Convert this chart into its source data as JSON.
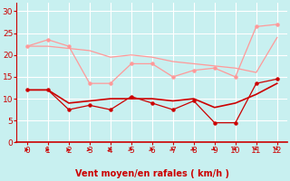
{
  "x": [
    0,
    1,
    2,
    3,
    4,
    5,
    6,
    7,
    8,
    9,
    10,
    11,
    12
  ],
  "line_top_light": [
    22,
    23.5,
    22,
    13.5,
    13.5,
    18,
    18,
    15,
    16.5,
    17,
    15,
    26.5,
    27
  ],
  "line_smooth_light": [
    22,
    22,
    21.5,
    21,
    19.5,
    20,
    19.5,
    18.5,
    18,
    17.5,
    17,
    16,
    24
  ],
  "line_mid_dark": [
    12,
    12,
    7.5,
    8.5,
    7.5,
    10.5,
    9,
    7.5,
    9.5,
    4.5,
    4.5,
    13.5,
    14.5
  ],
  "line_bottom_dark": [
    12,
    12,
    9,
    9.5,
    10,
    10,
    10,
    9.5,
    10,
    8,
    9,
    11,
    13.5
  ],
  "xlabel": "Vent moyen/en rafales ( km/h )",
  "ylim": [
    0,
    32
  ],
  "xlim": [
    -0.5,
    12.5
  ],
  "yticks": [
    0,
    5,
    10,
    15,
    20,
    25,
    30
  ],
  "xticks": [
    0,
    1,
    2,
    3,
    4,
    5,
    6,
    7,
    8,
    9,
    10,
    11,
    12
  ],
  "bg_color": "#c8f0f0",
  "grid_color": "#ffffff",
  "light_red": "#ff9999",
  "dark_red": "#cc0000",
  "medium_red": "#dd4444",
  "xlabel_color": "#cc0000",
  "tick_color": "#cc0000",
  "axis_color": "#cc0000",
  "arrow_angles_deg": [
    0,
    0,
    0,
    -10,
    -15,
    -20,
    -20,
    -25,
    -30,
    -40,
    -50,
    -55,
    -60
  ]
}
